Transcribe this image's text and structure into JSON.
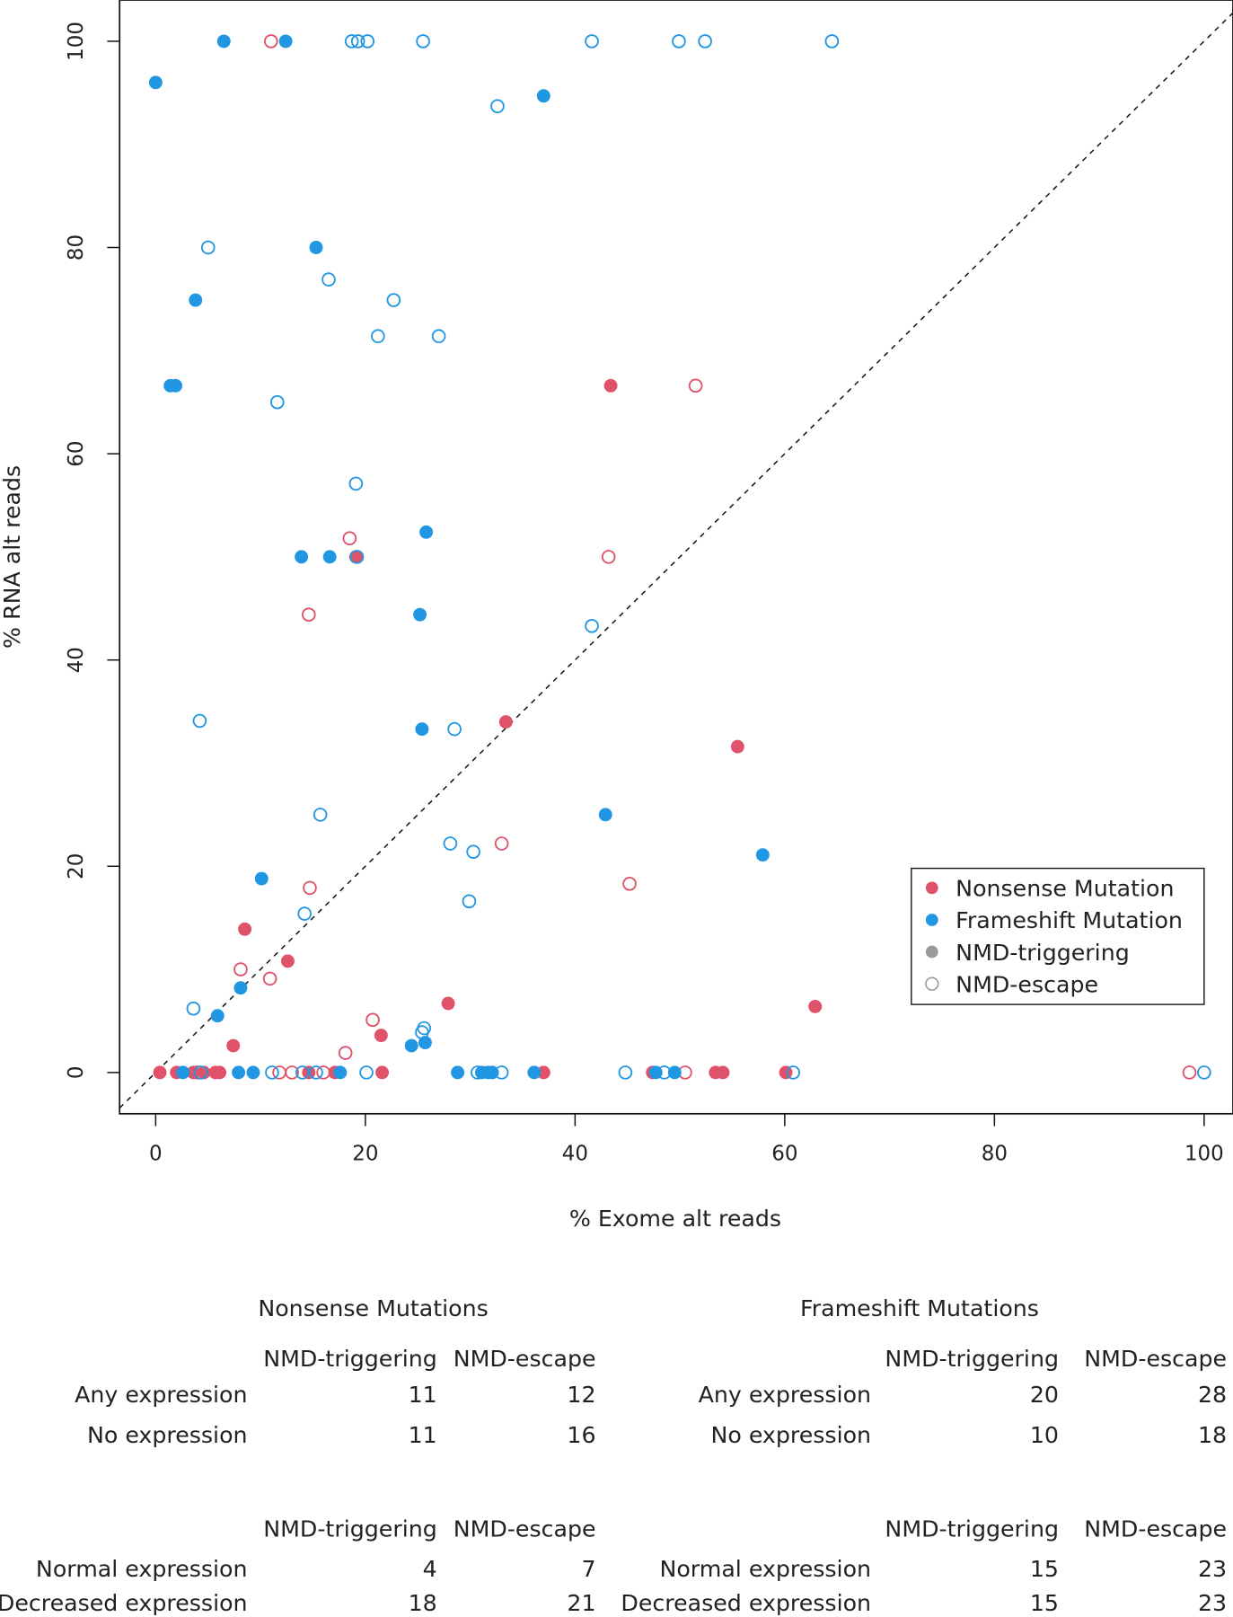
{
  "chart_data": {
    "type": "scatter",
    "xlabel": "% Exome alt reads",
    "ylabel": "% RNA alt reads",
    "xlim": [
      0,
      100
    ],
    "ylim": [
      0,
      100
    ],
    "xticks": [
      0,
      20,
      40,
      60,
      80,
      100
    ],
    "yticks": [
      0,
      20,
      40,
      60,
      80,
      100
    ],
    "reference_line": "y = x (dashed)",
    "grid": false,
    "legend_position": "right",
    "colors": {
      "nonsense": "#E0526A",
      "frameshift": "#2196E3",
      "legend_neutral": "#9a9a9a"
    },
    "legend": [
      {
        "label": "Nonsense Mutation",
        "color": "nonsense",
        "filled": true
      },
      {
        "label": "Frameshift Mutation",
        "color": "frameshift",
        "filled": true
      },
      {
        "label": "NMD-triggering",
        "color": "legend_neutral",
        "filled": true
      },
      {
        "label": "NMD-escape",
        "color": "legend_neutral",
        "filled": false
      }
    ],
    "series": [
      {
        "name": "Nonsense NMD-triggering",
        "mutation": "nonsense",
        "filled": true,
        "points": [
          [
            43.4,
            66.6
          ],
          [
            19.1,
            50
          ],
          [
            33.4,
            34
          ],
          [
            55.5,
            31.6
          ],
          [
            8.5,
            13.9
          ],
          [
            12.6,
            10.8
          ],
          [
            27.9,
            6.7
          ],
          [
            62.9,
            6.4
          ],
          [
            21.5,
            3.6
          ],
          [
            7.4,
            2.6
          ],
          [
            0.4,
            0
          ],
          [
            2.0,
            0
          ],
          [
            3.6,
            0
          ],
          [
            4.6,
            0
          ],
          [
            5.7,
            0
          ],
          [
            6.1,
            0
          ],
          [
            14.6,
            0
          ],
          [
            17.1,
            0
          ],
          [
            21.6,
            0
          ],
          [
            37.0,
            0
          ],
          [
            47.4,
            0
          ],
          [
            53.4,
            0
          ],
          [
            54.1,
            0
          ],
          [
            60.1,
            0
          ]
        ]
      },
      {
        "name": "Nonsense NMD-escape",
        "mutation": "nonsense",
        "filled": false,
        "points": [
          [
            11,
            100
          ],
          [
            51.5,
            66.6
          ],
          [
            18.5,
            51.8
          ],
          [
            43.2,
            50
          ],
          [
            14.6,
            44.4
          ],
          [
            33,
            22.2
          ],
          [
            14.7,
            17.9
          ],
          [
            45.2,
            18.3
          ],
          [
            8.1,
            10
          ],
          [
            10.9,
            9.1
          ],
          [
            20.7,
            5.1
          ],
          [
            18.1,
            1.9
          ],
          [
            4.0,
            0
          ],
          [
            11.8,
            0
          ],
          [
            13.0,
            0
          ],
          [
            16.0,
            0
          ],
          [
            50.5,
            0
          ],
          [
            98.6,
            0
          ]
        ]
      },
      {
        "name": "Frameshift NMD-triggering",
        "mutation": "frameshift",
        "filled": true,
        "points": [
          [
            6.5,
            100
          ],
          [
            12.4,
            100
          ],
          [
            0,
            96
          ],
          [
            37,
            94.7
          ],
          [
            15.3,
            80
          ],
          [
            3.8,
            74.9
          ],
          [
            1.4,
            66.6
          ],
          [
            1.9,
            66.6
          ],
          [
            25.8,
            52.4
          ],
          [
            13.9,
            50
          ],
          [
            16.6,
            50
          ],
          [
            25.2,
            44.4
          ],
          [
            25.4,
            33.3
          ],
          [
            42.9,
            25
          ],
          [
            57.9,
            21.1
          ],
          [
            10.1,
            18.8
          ],
          [
            8.1,
            8.2
          ],
          [
            5.9,
            5.5
          ],
          [
            24.4,
            2.6
          ],
          [
            25.7,
            2.9
          ],
          [
            2.6,
            0
          ],
          [
            7.9,
            0
          ],
          [
            9.3,
            0
          ],
          [
            17.6,
            0
          ],
          [
            28.8,
            0
          ],
          [
            31.1,
            0
          ],
          [
            31.7,
            0
          ],
          [
            32.1,
            0
          ],
          [
            36.1,
            0
          ],
          [
            47.7,
            0
          ],
          [
            49.5,
            0
          ]
        ]
      },
      {
        "name": "Frameshift NMD-escape",
        "mutation": "frameshift",
        "filled": false,
        "points": [
          [
            18.7,
            100
          ],
          [
            19.3,
            100
          ],
          [
            20.2,
            100
          ],
          [
            25.5,
            100
          ],
          [
            41.6,
            100
          ],
          [
            49.9,
            100
          ],
          [
            52.4,
            100
          ],
          [
            64.5,
            100
          ],
          [
            32.6,
            93.7
          ],
          [
            5,
            80
          ],
          [
            16.5,
            76.9
          ],
          [
            22.7,
            74.9
          ],
          [
            21.2,
            71.4
          ],
          [
            27,
            71.4
          ],
          [
            11.6,
            65
          ],
          [
            19.1,
            57.1
          ],
          [
            19.2,
            50
          ],
          [
            41.6,
            43.3
          ],
          [
            4.2,
            34.1
          ],
          [
            28.5,
            33.3
          ],
          [
            15.7,
            25
          ],
          [
            28.1,
            22.2
          ],
          [
            30.3,
            21.4
          ],
          [
            29.9,
            16.6
          ],
          [
            14.2,
            15.4
          ],
          [
            3.6,
            6.2
          ],
          [
            25.6,
            4.3
          ],
          [
            25.4,
            3.9
          ],
          [
            4.3,
            0
          ],
          [
            11.1,
            0
          ],
          [
            14.0,
            0
          ],
          [
            15.3,
            0
          ],
          [
            20.1,
            0
          ],
          [
            30.7,
            0
          ],
          [
            33.0,
            0
          ],
          [
            44.8,
            0
          ],
          [
            48.5,
            0
          ],
          [
            60.8,
            0
          ],
          [
            100,
            0
          ]
        ]
      }
    ]
  },
  "tables": {
    "nonsense": {
      "title": "Nonsense Mutations",
      "block1": {
        "headers": [
          "NMD-triggering",
          "NMD-escape"
        ],
        "rows": [
          {
            "label": "Any expression",
            "values": [
              "11",
              "12"
            ]
          },
          {
            "label": "No expression",
            "values": [
              "11",
              "16"
            ]
          }
        ]
      },
      "block2": {
        "headers": [
          "NMD-triggering",
          "NMD-escape"
        ],
        "rows": [
          {
            "label": "Normal expression",
            "values": [
              "4",
              "7"
            ]
          },
          {
            "label": "Decreased expression",
            "values": [
              "18",
              "21"
            ]
          }
        ]
      }
    },
    "frameshift": {
      "title": "Frameshift Mutations",
      "block1": {
        "headers": [
          "NMD-triggering",
          "NMD-escape"
        ],
        "rows": [
          {
            "label": "Any expression",
            "values": [
              "20",
              "28"
            ]
          },
          {
            "label": "No expression",
            "values": [
              "10",
              "18"
            ]
          }
        ]
      },
      "block2": {
        "headers": [
          "NMD-triggering",
          "NMD-escape"
        ],
        "rows": [
          {
            "label": "Normal expression",
            "values": [
              "15",
              "23"
            ]
          },
          {
            "label": "Decreased expression",
            "values": [
              "15",
              "23"
            ]
          }
        ]
      }
    }
  }
}
